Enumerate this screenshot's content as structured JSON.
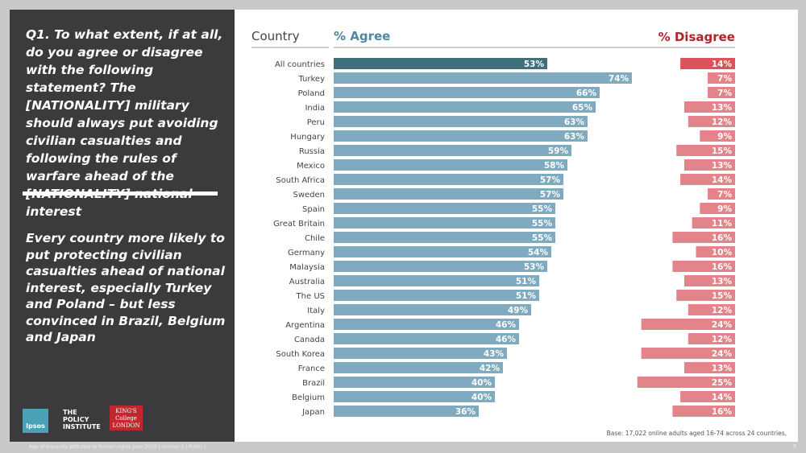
{
  "sidebar": {
    "question": "Q1. To what extent, if at all, do you agree or disagree with the following statement? The [NATIONALITY] military should always put avoiding civilian casualties and following the rules of warfare ahead of the [NATIONALITY] national interest",
    "insight": "Every country more likely to put protecting civilian casualties ahead of national interest, especially Turkey and Poland – but less convinced in Brazil, Belgium and Japan",
    "logos": {
      "ipsos": "Ipsos",
      "policy": "THE POLICY INSTITUTE",
      "kings": "KING'S College LONDON"
    }
  },
  "chart_data": {
    "type": "bar",
    "category_header": "Country",
    "categories": [
      "All countries",
      "Turkey",
      "Poland",
      "India",
      "Peru",
      "Hungary",
      "Russia",
      "Mexico",
      "South Africa",
      "Sweden",
      "Spain",
      "Great Britain",
      "Chile",
      "Germany",
      "Malaysia",
      "Australia",
      "The US",
      "Italy",
      "Argentina",
      "Canada",
      "South Korea",
      "France",
      "Brazil",
      "Belgium",
      "Japan"
    ],
    "series": [
      {
        "name": "% Agree",
        "values": [
          53,
          74,
          66,
          65,
          63,
          63,
          59,
          58,
          57,
          57,
          55,
          55,
          55,
          54,
          53,
          51,
          51,
          49,
          46,
          46,
          43,
          42,
          40,
          40,
          36
        ],
        "color": "#7faabf",
        "highlight_color": "#3e6f7b"
      },
      {
        "name": "% Disagree",
        "values": [
          14,
          7,
          7,
          13,
          12,
          9,
          15,
          13,
          14,
          7,
          9,
          11,
          16,
          10,
          16,
          13,
          15,
          12,
          24,
          12,
          24,
          13,
          25,
          14,
          16
        ],
        "color": "#e3838a",
        "highlight_color": "#db525b"
      }
    ],
    "header_colors": {
      "agree": "#4f86a3",
      "disagree": "#b3232c"
    }
  },
  "base_note": "Base: 17,022 online adults aged 16-74 across 24 countries,",
  "footer": "Age of Impunity attitudes to human rights June 2019 | Version 1 | Public |",
  "page_number": "3"
}
